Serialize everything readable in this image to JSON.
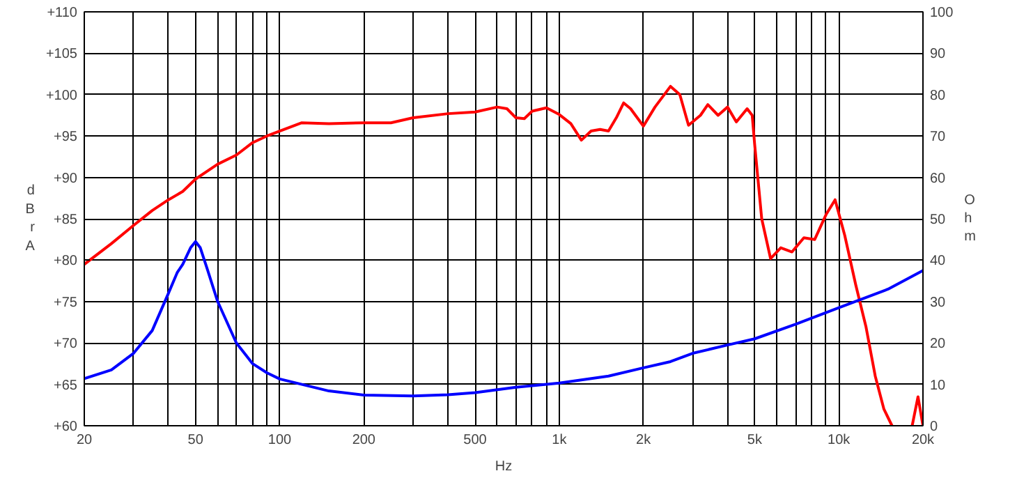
{
  "chart_data": {
    "type": "line",
    "xlabel": "Hz",
    "ylabel": "dBrA",
    "y2label": "Ohm",
    "log": "x",
    "grid": true,
    "line_style": "solid",
    "marker": "none",
    "xlim": [
      20,
      20000
    ],
    "ylim": [
      60,
      110
    ],
    "y2lim": [
      0,
      100
    ],
    "xticks": [
      20,
      {
        "value": 30,
        "label": null
      },
      {
        "value": 40,
        "label": null
      },
      50,
      {
        "value": 60,
        "label": null
      },
      {
        "value": 70,
        "label": null
      },
      {
        "value": 80,
        "label": null
      },
      {
        "value": 90,
        "label": null
      },
      100,
      200,
      {
        "value": 300,
        "label": null
      },
      {
        "value": 400,
        "label": null
      },
      500,
      {
        "value": 600,
        "label": null
      },
      {
        "value": 700,
        "label": null
      },
      {
        "value": 800,
        "label": null
      },
      {
        "value": 900,
        "label": null
      },
      {
        "value": 1000,
        "label": "1k"
      },
      {
        "value": 2000,
        "label": "2k"
      },
      {
        "value": 3000,
        "label": null
      },
      {
        "value": 4000,
        "label": null
      },
      {
        "value": 5000,
        "label": "5k"
      },
      {
        "value": 6000,
        "label": null
      },
      {
        "value": 7000,
        "label": null
      },
      {
        "value": 8000,
        "label": null
      },
      {
        "value": 9000,
        "label": null
      },
      {
        "value": 10000,
        "label": "10k"
      },
      {
        "value": 20000,
        "label": "20k"
      }
    ],
    "yticks": [
      {
        "value": 60,
        "label": "+60"
      },
      {
        "value": 65,
        "label": "+65"
      },
      {
        "value": 70,
        "label": "+70"
      },
      {
        "value": 75,
        "label": "+75"
      },
      {
        "value": 80,
        "label": "+80"
      },
      {
        "value": 85,
        "label": "+85"
      },
      {
        "value": 90,
        "label": "+90"
      },
      {
        "value": 95,
        "label": "+95"
      },
      {
        "value": 100,
        "label": "+100"
      },
      {
        "value": 105,
        "label": "+105"
      },
      {
        "value": 110,
        "label": "+110"
      }
    ],
    "y2ticks": [
      0,
      10,
      20,
      30,
      40,
      50,
      60,
      70,
      80,
      90,
      100
    ],
    "series": [
      {
        "color": "#ff0000",
        "x": [
          20,
          25,
          30,
          35,
          40,
          45,
          50,
          60,
          70,
          80,
          90,
          100,
          120,
          150,
          200,
          250,
          300,
          400,
          500,
          600,
          650,
          700,
          750,
          800,
          900,
          1000,
          1100,
          1200,
          1300,
          1400,
          1500,
          1600,
          1700,
          1800,
          2000,
          2200,
          2500,
          2700,
          2900,
          3200,
          3400,
          3700,
          4000,
          4300,
          4700,
          4900,
          5000,
          5300,
          5700,
          6200,
          6800,
          7500,
          8200,
          9000,
          9700,
          10500,
          11500,
          12500,
          13500,
          14500,
          15500,
          16500,
          18300,
          19200,
          20000
        ],
        "values": [
          79.5,
          82,
          84.2,
          86,
          87.3,
          88.3,
          89.8,
          91.6,
          92.7,
          94.2,
          95,
          95.6,
          96.6,
          96.5,
          96.6,
          96.6,
          97.2,
          97.7,
          97.9,
          98.5,
          98.3,
          97.2,
          97.1,
          98,
          98.4,
          97.6,
          96.5,
          94.5,
          95.6,
          95.8,
          95.6,
          97.2,
          99,
          98.3,
          96.2,
          98.5,
          101,
          100,
          96.3,
          97.5,
          98.8,
          97.5,
          98.5,
          96.7,
          98.3,
          97.5,
          94,
          85,
          80.2,
          81.5,
          81,
          82.7,
          82.5,
          85.5,
          87.3,
          83,
          77,
          72,
          66,
          62,
          60,
          null,
          60,
          63.5,
          60
        ]
      },
      {
        "color": "#0000ff",
        "axis": "y2",
        "x": [
          20,
          25,
          30,
          35,
          40,
          43,
          45,
          48,
          50,
          52,
          55,
          60,
          70,
          80,
          90,
          100,
          150,
          200,
          300,
          400,
          500,
          700,
          1000,
          1500,
          2000,
          2500,
          3000,
          4000,
          5000,
          7000,
          10000,
          15000,
          20000
        ],
        "values": [
          11.4,
          13.5,
          17.5,
          23,
          32,
          37,
          39,
          43,
          44.5,
          43,
          38,
          30,
          20,
          15,
          12.8,
          11.3,
          8.4,
          7.4,
          7.2,
          7.5,
          8,
          9.3,
          10.3,
          12,
          14,
          15.5,
          17.5,
          19.5,
          21,
          24.5,
          28.5,
          33,
          37.5
        ]
      }
    ]
  }
}
